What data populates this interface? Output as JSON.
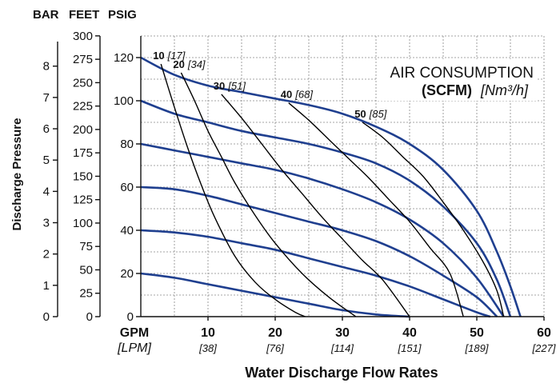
{
  "chart_data": {
    "type": "line",
    "title": "AIR CONSUMPTION",
    "subtitle_bold": "(SCFM)",
    "subtitle_italic": "[Nm³/h]",
    "y_axis_label": "Discharge Pressure",
    "x_axis_label": "Water Discharge Flow Rates",
    "left_axes": {
      "bar": {
        "header": "BAR",
        "ticks": [
          0,
          1,
          2,
          3,
          4,
          5,
          6,
          7,
          8
        ]
      },
      "feet": {
        "header": "FEET",
        "ticks": [
          0,
          25,
          50,
          75,
          100,
          125,
          150,
          175,
          200,
          225,
          250,
          275,
          300
        ]
      },
      "psig": {
        "header": "PSIG",
        "ticks": [
          0,
          20,
          40,
          60,
          80,
          100,
          120
        ]
      }
    },
    "x_axis": {
      "unit_primary": "GPM",
      "unit_secondary": "[LPM]",
      "gpm_ticks": [
        10,
        20,
        30,
        40,
        50,
        60
      ],
      "lpm_ticks": [
        "[38]",
        "[76]",
        "[114]",
        "[151]",
        "[189]",
        "[227]"
      ]
    },
    "xlim": [
      0,
      60
    ],
    "ylim": [
      0,
      130
    ],
    "performance_curves": [
      {
        "points": [
          [
            0,
            120
          ],
          [
            5,
            112
          ],
          [
            10,
            107
          ],
          [
            15,
            104
          ],
          [
            20,
            101
          ],
          [
            25,
            98
          ],
          [
            30,
            94
          ],
          [
            35,
            88
          ],
          [
            40,
            80
          ],
          [
            45,
            68
          ],
          [
            50,
            49
          ],
          [
            53,
            30
          ],
          [
            55,
            14
          ],
          [
            56.5,
            0
          ]
        ]
      },
      {
        "points": [
          [
            0,
            100
          ],
          [
            5,
            94
          ],
          [
            10,
            90
          ],
          [
            15,
            86
          ],
          [
            20,
            83
          ],
          [
            25,
            80
          ],
          [
            30,
            76
          ],
          [
            35,
            71
          ],
          [
            40,
            63
          ],
          [
            45,
            51
          ],
          [
            50,
            34
          ],
          [
            53,
            17
          ],
          [
            55,
            0
          ]
        ]
      },
      {
        "points": [
          [
            0,
            80
          ],
          [
            5,
            77
          ],
          [
            10,
            74
          ],
          [
            15,
            71
          ],
          [
            20,
            68
          ],
          [
            25,
            64
          ],
          [
            30,
            59
          ],
          [
            35,
            53
          ],
          [
            40,
            45
          ],
          [
            45,
            34
          ],
          [
            50,
            18
          ],
          [
            54,
            0
          ]
        ]
      },
      {
        "points": [
          [
            0,
            60
          ],
          [
            5,
            59
          ],
          [
            10,
            56
          ],
          [
            15,
            52
          ],
          [
            20,
            48
          ],
          [
            25,
            44
          ],
          [
            30,
            40
          ],
          [
            35,
            35
          ],
          [
            40,
            28
          ],
          [
            45,
            19
          ],
          [
            50,
            9
          ],
          [
            53,
            0
          ]
        ]
      },
      {
        "points": [
          [
            0,
            40
          ],
          [
            5,
            39
          ],
          [
            10,
            37
          ],
          [
            15,
            34
          ],
          [
            20,
            31
          ],
          [
            25,
            27
          ],
          [
            30,
            23
          ],
          [
            35,
            19
          ],
          [
            40,
            14
          ],
          [
            45,
            8
          ],
          [
            50,
            2
          ],
          [
            52,
            0
          ]
        ]
      },
      {
        "points": [
          [
            0,
            20
          ],
          [
            5,
            18
          ],
          [
            10,
            15
          ],
          [
            15,
            12
          ],
          [
            20,
            9
          ],
          [
            25,
            6
          ],
          [
            30,
            3
          ],
          [
            35,
            1
          ],
          [
            40,
            0
          ]
        ]
      }
    ],
    "air_consumption_curves": [
      {
        "label": "10",
        "label_metric": "[17]",
        "points": [
          [
            3,
            117
          ],
          [
            5,
            97
          ],
          [
            7,
            78
          ],
          [
            9,
            61
          ],
          [
            11,
            46
          ],
          [
            14,
            28
          ],
          [
            17,
            16
          ],
          [
            20,
            8
          ],
          [
            23,
            2
          ],
          [
            24.5,
            0
          ]
        ]
      },
      {
        "label": "20",
        "label_metric": "[34]",
        "points": [
          [
            6,
            113
          ],
          [
            8,
            100
          ],
          [
            10,
            86
          ],
          [
            12,
            74
          ],
          [
            14,
            62
          ],
          [
            17,
            47
          ],
          [
            20,
            34
          ],
          [
            24,
            20
          ],
          [
            28,
            9
          ],
          [
            32,
            0
          ]
        ]
      },
      {
        "label": "30",
        "label_metric": "[51]",
        "points": [
          [
            12,
            103
          ],
          [
            15,
            92
          ],
          [
            18,
            80
          ],
          [
            21,
            68
          ],
          [
            24,
            57
          ],
          [
            27,
            46
          ],
          [
            30,
            36
          ],
          [
            33,
            26
          ],
          [
            36,
            17
          ],
          [
            40,
            0
          ]
        ]
      },
      {
        "label": "40",
        "label_metric": "[68]",
        "points": [
          [
            22,
            99
          ],
          [
            25,
            91
          ],
          [
            28,
            82
          ],
          [
            31,
            73
          ],
          [
            34,
            64
          ],
          [
            37,
            54
          ],
          [
            40,
            44
          ],
          [
            43,
            32
          ],
          [
            46,
            20
          ],
          [
            48,
            0
          ]
        ]
      },
      {
        "label": "50",
        "label_metric": "[85]",
        "points": [
          [
            33,
            90
          ],
          [
            36,
            83
          ],
          [
            39,
            74
          ],
          [
            42,
            65
          ],
          [
            45,
            53
          ],
          [
            48,
            40
          ],
          [
            51,
            25
          ],
          [
            53,
            12
          ],
          [
            54,
            0
          ]
        ]
      }
    ],
    "colors": {
      "performance": "#1f3f8f",
      "air": "#000000",
      "grid": "#888888"
    },
    "grid": true
  }
}
